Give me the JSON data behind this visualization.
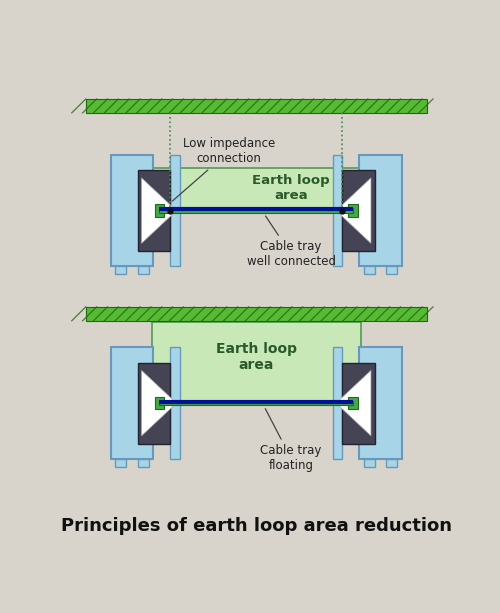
{
  "title": "Principles of earth loop area reduction",
  "title_fontsize": 13,
  "bg_color": "#d8d4cc",
  "top_diagram": {
    "cable_tray_label": "Cable tray\nfloating",
    "earth_loop_label": "Earth loop\narea"
  },
  "bottom_diagram": {
    "cable_tray_label": "Cable tray\nwell connected",
    "earth_loop_label": "Earth loop\narea",
    "impedance_label": "Low impedance\nconnection"
  },
  "enclosure_color": "#a8d4e8",
  "enclosure_border": "#6699bb",
  "dark_panel_color": "#444455",
  "dark_panel_border": "#222233",
  "play_arrow_color": "#ffffff",
  "play_arrow_edge": "#aaaaaa",
  "connector_color": "#44aa44",
  "connector_border": "#226622",
  "cable_green_color": "#44aa44",
  "cable_blue_color": "#001199",
  "ground_color": "#55bb33",
  "ground_stripe": "#226611",
  "ground_bg": "#88cc66",
  "loop_fill": "#c8e8b8",
  "loop_edge": "#559955",
  "foot_color": "#a8d4e8",
  "foot_border": "#6699bb",
  "dot_color": "#111111",
  "annotation_color": "#222222",
  "arrow_color": "#444444"
}
